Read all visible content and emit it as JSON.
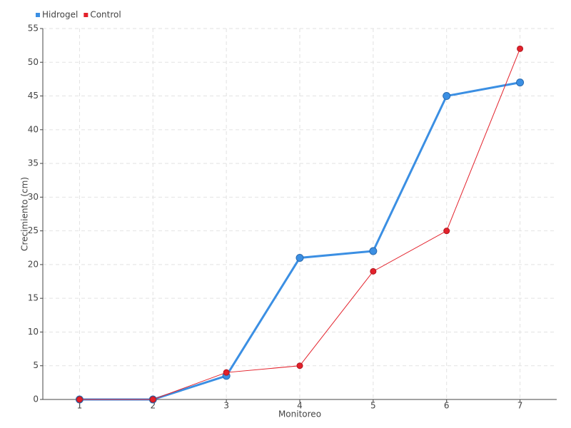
{
  "chart_data": {
    "type": "line",
    "categories": [
      "1",
      "2",
      "3",
      "4",
      "5",
      "6",
      "7"
    ],
    "series": [
      {
        "name": "Hidrogel",
        "color": "#3b8fe3",
        "values": [
          0,
          0,
          3.5,
          21,
          22,
          45,
          47
        ]
      },
      {
        "name": "Control",
        "color": "#e3212b",
        "values": [
          0,
          0,
          4,
          5,
          19,
          25,
          52
        ]
      }
    ],
    "x_label": "Monitoreo",
    "y_label": "Crecimiento (cm)",
    "ylim": [
      0,
      55
    ],
    "yticks": [
      0,
      5,
      10,
      15,
      20,
      25,
      30,
      35,
      40,
      45,
      50,
      55
    ],
    "grid": true,
    "legend": "top-left"
  }
}
